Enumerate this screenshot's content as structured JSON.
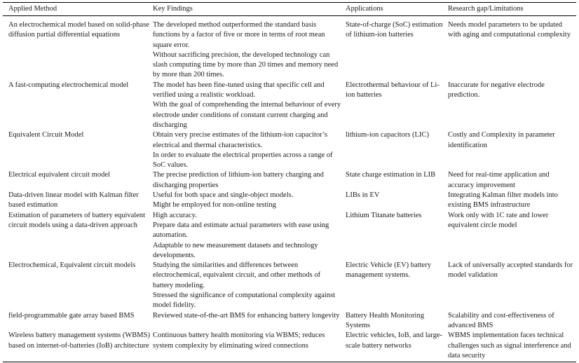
{
  "table": {
    "header": [
      "Applied Method",
      "Key Findings",
      "Applications",
      "Research gap/Limitations"
    ],
    "rows": [
      {
        "method": "An electrochemical model based on solid-phase diffusion partial differential equations",
        "findings": [
          "The developed method outperformed the standard basis functions by a factor of five or more in terms of root mean square error.",
          "Without sacrificing precision, the developed technology can slash computing time by more than 20 times and memory need by more than 200 times."
        ],
        "applications": "State-of-charge (SoC) estimation of lithium-ion batteries",
        "gaps": "Needs model parameters to be updated with aging and computational complexity"
      },
      {
        "method": "A fast-computing electrochemical model",
        "findings": [
          "The model has been fine-tuned using that specific cell and verified using a realistic workload.",
          "With the goal of comprehending the internal behaviour of every electrode under conditions of constant current charging and discharging"
        ],
        "applications": "Electrothermal behaviour of Li-ion batteries",
        "gaps": "Inaccurate for negative electrode prediction."
      },
      {
        "method": "Equivalent Circuit Model",
        "findings": [
          "Obtain very precise estimates of the lithium-ion capacitor’s electrical and thermal characteristics.",
          "In order to evaluate the electrical properties across a range of SoC values."
        ],
        "applications": "lithium-ion capacitors (LIC)",
        "gaps": "Costly and Complexity in parameter identification"
      },
      {
        "method": "Electrical equivalent circuit model",
        "findings": [
          "The precise prediction of lithium-ion battery charging and discharging properties"
        ],
        "applications": "State charge estimation in LIB",
        "gaps": "Need for real-time application and accuracy improvement"
      },
      {
        "method": "Data-driven linear model with Kalman filter based estimation",
        "findings": [
          "Useful for both space and single-object models.",
          "Might be employed for non-online testing"
        ],
        "applications": "LIBs in EV",
        "gaps": "Integrating Kalman filter models into existing BMS infrastructure"
      },
      {
        "method": "Estimation of parameters of battery equivalent circuit models using a data-driven approach",
        "findings": [
          "High accuracy.",
          "Prepare data and estimate actual parameters with ease using automation.",
          "Adaptable to new measurement datasets and technology developments."
        ],
        "applications": "Lithium Titanate batteries",
        "gaps": "Work only with 1C rate and lower equivalent circle model"
      },
      {
        "method": "Electrochemical, Equivalent circuit models",
        "findings": [
          "Studying the similarities and differences between electrochemical, equivalent circuit, and other methods of battery modeling.",
          "Stressed the significance of computational complexity against model fidelity."
        ],
        "applications": "Electric Vehicle (EV) battery management systems.",
        "gaps": "Lack of universally accepted standards for model validation"
      },
      {
        "method": "field-programmable gate array based BMS",
        "findings": [
          "Reviewed state-of-the-art BMS for enhancing battery longevity"
        ],
        "applications": "Battery Health Monitoring Systems",
        "gaps": "Scalability and cost-effectiveness of advanced BMS"
      },
      {
        "method": "Wireless battery management systems (WBMS) based on internet-of-batteries (IoB) architecture",
        "findings": [
          "Continuous battery health monitoring via WBMS; reduces system complexity by eliminating wired connections"
        ],
        "applications": "Electric vehicles, IoB, and large-scale battery networks",
        "gaps": "WBMS implementation faces technical challenges such as signal interference and data security"
      }
    ]
  }
}
